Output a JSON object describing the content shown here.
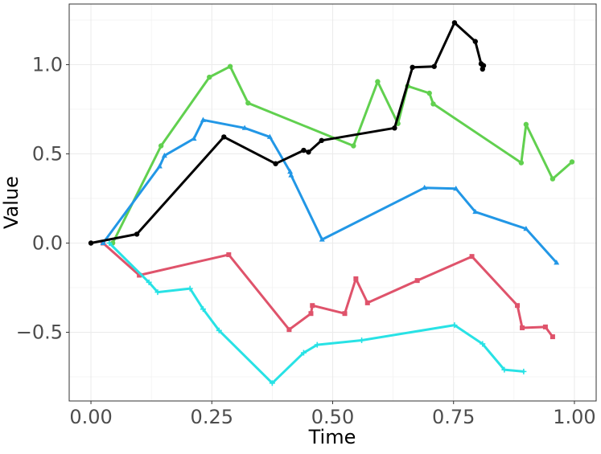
{
  "chart_data": {
    "type": "line",
    "title": "",
    "xlabel": "Time",
    "ylabel": "Value",
    "xlim": [
      -0.045,
      1.045
    ],
    "ylim": [
      -0.885,
      1.34
    ],
    "x_ticks": [
      0.0,
      0.25,
      0.5,
      0.75,
      1.0
    ],
    "x_tick_labels": [
      "0.00",
      "0.25",
      "0.50",
      "0.75",
      "1.00"
    ],
    "y_ticks": [
      -0.5,
      0.0,
      0.5,
      1.0
    ],
    "y_tick_labels": [
      "−0.5",
      "0.0",
      "0.5",
      "1.0"
    ],
    "grid": true,
    "legend": "none",
    "series": [
      {
        "color": "#DF536B",
        "marker": "square",
        "points": [
          {
            "x": 0.025,
            "y": 0.0
          },
          {
            "x": 0.1,
            "y": -0.18
          },
          {
            "x": 0.285,
            "y": -0.065
          },
          {
            "x": 0.41,
            "y": -0.485
          },
          {
            "x": 0.455,
            "y": -0.395
          },
          {
            "x": 0.458,
            "y": -0.35
          },
          {
            "x": 0.525,
            "y": -0.395
          },
          {
            "x": 0.548,
            "y": -0.2
          },
          {
            "x": 0.572,
            "y": -0.335
          },
          {
            "x": 0.675,
            "y": -0.21
          },
          {
            "x": 0.788,
            "y": -0.075
          },
          {
            "x": 0.882,
            "y": -0.35
          },
          {
            "x": 0.892,
            "y": -0.475
          },
          {
            "x": 0.94,
            "y": -0.47
          },
          {
            "x": 0.955,
            "y": -0.525
          }
        ]
      },
      {
        "color": "#61D04F",
        "marker": "circle",
        "points": [
          {
            "x": 0.045,
            "y": 0.0
          },
          {
            "x": 0.145,
            "y": 0.545
          },
          {
            "x": 0.245,
            "y": 0.93
          },
          {
            "x": 0.288,
            "y": 0.99
          },
          {
            "x": 0.325,
            "y": 0.785
          },
          {
            "x": 0.543,
            "y": 0.545
          },
          {
            "x": 0.593,
            "y": 0.905
          },
          {
            "x": 0.635,
            "y": 0.67
          },
          {
            "x": 0.655,
            "y": 0.88
          },
          {
            "x": 0.7,
            "y": 0.84
          },
          {
            "x": 0.708,
            "y": 0.78
          },
          {
            "x": 0.89,
            "y": 0.45
          },
          {
            "x": 0.9,
            "y": 0.665
          },
          {
            "x": 0.955,
            "y": 0.36
          },
          {
            "x": 0.995,
            "y": 0.455
          }
        ]
      },
      {
        "color": "#2297E6",
        "marker": "triangle",
        "points": [
          {
            "x": 0.025,
            "y": 0.0
          },
          {
            "x": 0.142,
            "y": 0.43
          },
          {
            "x": 0.152,
            "y": 0.49
          },
          {
            "x": 0.213,
            "y": 0.585
          },
          {
            "x": 0.232,
            "y": 0.69
          },
          {
            "x": 0.318,
            "y": 0.645
          },
          {
            "x": 0.37,
            "y": 0.595
          },
          {
            "x": 0.412,
            "y": 0.4
          },
          {
            "x": 0.414,
            "y": 0.38
          },
          {
            "x": 0.478,
            "y": 0.02
          },
          {
            "x": 0.69,
            "y": 0.31
          },
          {
            "x": 0.755,
            "y": 0.305
          },
          {
            "x": 0.795,
            "y": 0.175
          },
          {
            "x": 0.9,
            "y": 0.08
          },
          {
            "x": 0.963,
            "y": -0.11
          }
        ]
      },
      {
        "color": "#28E2E5",
        "marker": "plus",
        "points": [
          {
            "x": 0.038,
            "y": 0.0
          },
          {
            "x": 0.12,
            "y": -0.22
          },
          {
            "x": 0.138,
            "y": -0.275
          },
          {
            "x": 0.205,
            "y": -0.255
          },
          {
            "x": 0.232,
            "y": -0.37
          },
          {
            "x": 0.265,
            "y": -0.49
          },
          {
            "x": 0.375,
            "y": -0.785
          },
          {
            "x": 0.44,
            "y": -0.615
          },
          {
            "x": 0.468,
            "y": -0.57
          },
          {
            "x": 0.56,
            "y": -0.545
          },
          {
            "x": 0.752,
            "y": -0.46
          },
          {
            "x": 0.81,
            "y": -0.565
          },
          {
            "x": 0.855,
            "y": -0.71
          },
          {
            "x": 0.895,
            "y": -0.72
          }
        ]
      },
      {
        "color": "#000000",
        "marker": "circle",
        "points": [
          {
            "x": 0.0,
            "y": 0.0
          },
          {
            "x": 0.095,
            "y": 0.05
          },
          {
            "x": 0.275,
            "y": 0.595
          },
          {
            "x": 0.382,
            "y": 0.445
          },
          {
            "x": 0.44,
            "y": 0.52
          },
          {
            "x": 0.45,
            "y": 0.51
          },
          {
            "x": 0.477,
            "y": 0.575
          },
          {
            "x": 0.628,
            "y": 0.645
          },
          {
            "x": 0.665,
            "y": 0.985
          },
          {
            "x": 0.71,
            "y": 0.99
          },
          {
            "x": 0.752,
            "y": 1.235
          },
          {
            "x": 0.795,
            "y": 1.13
          },
          {
            "x": 0.807,
            "y": 1.005
          },
          {
            "x": 0.81,
            "y": 0.975
          },
          {
            "x": 0.812,
            "y": 0.995
          }
        ]
      }
    ]
  }
}
